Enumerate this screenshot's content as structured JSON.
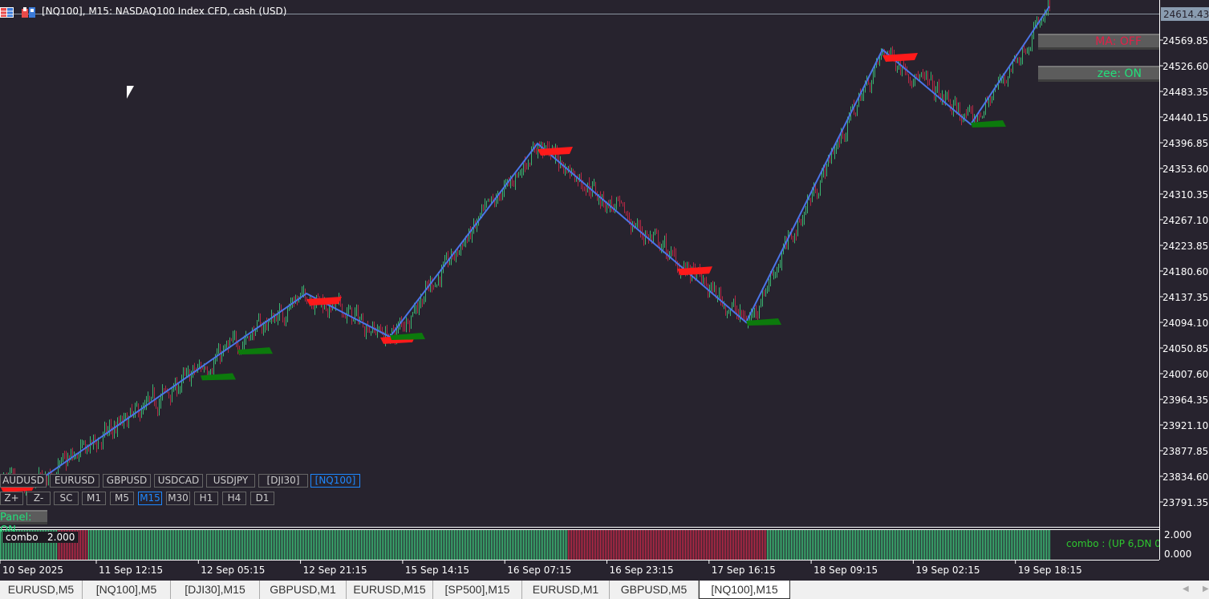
{
  "window": {
    "title": "[NQ100], M15:  NASDAQ100 Index CFD, cash (USD)"
  },
  "colors": {
    "background": "#27232e",
    "bull": "#3ecf7f",
    "bear": "#d0284a",
    "zigzag": "#4a74e8",
    "sell_signal": "#ff1a1a",
    "buy_signal": "#0c7a0c",
    "accent": "#1e88ff"
  },
  "price_axis": {
    "current": "24614.43",
    "labels": [
      "24569.85",
      "24526.60",
      "24483.35",
      "24440.15",
      "24396.85",
      "24353.60",
      "24310.35",
      "24267.10",
      "24223.85",
      "24180.60",
      "24137.35",
      "24094.10",
      "24050.85",
      "24007.60",
      "23964.35",
      "23921.10",
      "23877.85",
      "23834.60",
      "23791.35"
    ]
  },
  "time_axis": {
    "labels": [
      "10 Sep 2025",
      "11 Sep 12:15",
      "12 Sep 05:15",
      "12 Sep 21:15",
      "15 Sep 14:15",
      "16 Sep 07:15",
      "16 Sep 23:15",
      "17 Sep 16:15",
      "18 Sep 09:15",
      "19 Sep 02:15",
      "19 Sep 18:15"
    ]
  },
  "zigzag_pivots": [
    {
      "bar": 15,
      "price": 23810
    },
    {
      "bar": 191,
      "price": 24142.7
    },
    {
      "bar": 243,
      "price": 24069.7
    },
    {
      "bar": 335,
      "price": 24395.5
    },
    {
      "bar": 465,
      "price": 24094.1
    },
    {
      "bar": 550,
      "price": 24553.6
    },
    {
      "bar": 605,
      "price": 24427.9
    },
    {
      "bar": 654,
      "price": 24626.6
    }
  ],
  "signals": {
    "sell_bars": [
      0,
      191,
      237,
      335,
      422,
      550
    ],
    "buy_bars": [
      125,
      148,
      243,
      465,
      605
    ]
  },
  "panel": {
    "ma_label": "MA: OFF",
    "zee_label": "zee: ON",
    "panel_label": "Panel: ON"
  },
  "symbols": [
    "AUDUSD",
    "EURUSD",
    "GBPUSD",
    "USDCAD",
    "USDJPY",
    "[DJI30]",
    "[NQ100]"
  ],
  "active_symbol": "[NQ100]",
  "timeframe_controls": [
    "Z+",
    "Z-",
    "SC",
    "M1",
    "M5",
    "M15",
    "M30",
    "H1",
    "H4",
    "D1"
  ],
  "active_timeframe": "M15",
  "indicator": {
    "name": "combo",
    "value": "2.000",
    "status": "combo : (UP 6,DN 0",
    "axis": [
      "2.000",
      "0.000"
    ]
  },
  "tabs": [
    {
      "label": "EURUSD,M5"
    },
    {
      "label": "[NQ100],M5"
    },
    {
      "label": "[DJI30],M15"
    },
    {
      "label": "GBPUSD,M1"
    },
    {
      "label": "EURUSD,M15"
    },
    {
      "label": "[SP500],M15"
    },
    {
      "label": "EURUSD,M1"
    },
    {
      "label": "GBPUSD,M5"
    },
    {
      "label": "[NQ100],M15",
      "active": true
    }
  ]
}
